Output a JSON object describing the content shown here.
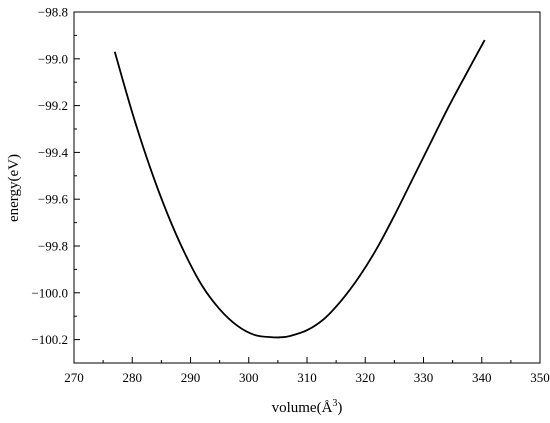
{
  "chart_data": {
    "type": "line",
    "title": "",
    "xlabel": "volume(Å",
    "xlabel_sup": "3",
    "xlabel_close": ")",
    "ylabel": "energy(eV)",
    "xlim": [
      270,
      350
    ],
    "ylim": [
      -100.3,
      -98.8
    ],
    "x_ticks": [
      270,
      280,
      290,
      300,
      310,
      320,
      330,
      340,
      350
    ],
    "x_tick_labels": [
      "270",
      "280",
      "290",
      "300",
      "310",
      "320",
      "330",
      "340",
      "350"
    ],
    "y_ticks": [
      -98.8,
      -99.0,
      -99.2,
      -99.4,
      -99.6,
      -99.8,
      -100.0,
      -100.2
    ],
    "y_tick_labels": [
      "−98.8",
      "−99.0",
      "−99.2",
      "−99.4",
      "−99.6",
      "−99.8",
      "−100.0",
      "−100.2"
    ],
    "grid": false,
    "legend": "none",
    "series": [
      {
        "color": "#000000",
        "x": [
          277,
          280,
          283,
          286,
          289,
          292,
          295,
          298,
          301,
          304,
          305.5,
          307,
          310,
          313,
          316,
          319,
          322,
          325,
          328,
          331,
          334,
          337,
          340.5
        ],
        "y": [
          -98.97,
          -99.23,
          -99.46,
          -99.66,
          -99.83,
          -99.97,
          -100.07,
          -100.14,
          -100.18,
          -100.19,
          -100.19,
          -100.185,
          -100.16,
          -100.11,
          -100.03,
          -99.93,
          -99.81,
          -99.67,
          -99.52,
          -99.37,
          -99.22,
          -99.08,
          -98.92
        ]
      }
    ]
  }
}
